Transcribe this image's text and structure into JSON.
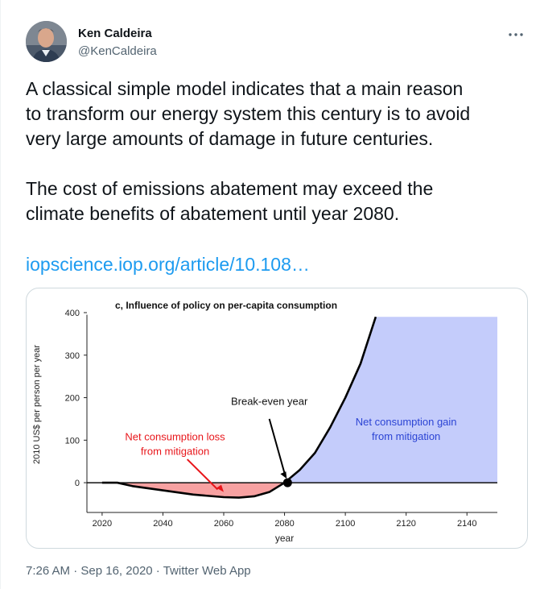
{
  "author": {
    "name": "Ken Caldeira",
    "handle": "@KenCaldeira",
    "avatar_icon": "person-avatar"
  },
  "more_icon": "ellipsis-icon",
  "tweet": {
    "text": "A classical simple model indicates that a main reason\nto transform our energy system this century is to avoid\nvery large amounts of damage in future centuries.\n\nThe cost of emissions abatement may exceed the\nclimate benefits of abatement until year 2080.",
    "link": "iopscience.iop.org/article/10.108…"
  },
  "meta": {
    "time": "7:26 AM",
    "sep1": " · ",
    "date": "Sep 16, 2020",
    "sep2": " · ",
    "app": "Twitter Web App"
  },
  "chart_data": {
    "type": "line",
    "title": "c, Influence of policy on per-capita consumption",
    "xlabel": "year",
    "ylabel": "2010 US$ per person per year",
    "xlim": [
      2015,
      2150
    ],
    "ylim": [
      -70,
      400
    ],
    "x_ticks": [
      2020,
      2040,
      2060,
      2080,
      2100,
      2120,
      2140
    ],
    "y_ticks": [
      0,
      100,
      200,
      300,
      400
    ],
    "grid": false,
    "series": [
      {
        "x": [
          2020,
          2025,
          2030,
          2040,
          2050,
          2060,
          2065,
          2070,
          2075,
          2080,
          2085,
          2090,
          2095,
          2100,
          2105,
          2110
        ],
        "y": [
          0,
          0,
          -8,
          -18,
          -28,
          -34,
          -35,
          -32,
          -22,
          0,
          30,
          70,
          130,
          200,
          280,
          390
        ]
      }
    ],
    "shaded_regions": [
      {
        "label": "Net consumption loss\nfrom mitigation",
        "x_range": [
          2028,
          2081
        ],
        "color": "#f7a1a1"
      },
      {
        "label": "Net consumption gain\nfrom mitigation",
        "x_range": [
          2081,
          2150
        ],
        "color": "#c4ccfb"
      }
    ],
    "annotations": [
      {
        "text": "Break-even year",
        "x": 2081,
        "y": 0
      }
    ],
    "colors": {
      "line": "#000000",
      "loss_text": "#e8161b",
      "gain_text": "#2c44d4"
    }
  }
}
